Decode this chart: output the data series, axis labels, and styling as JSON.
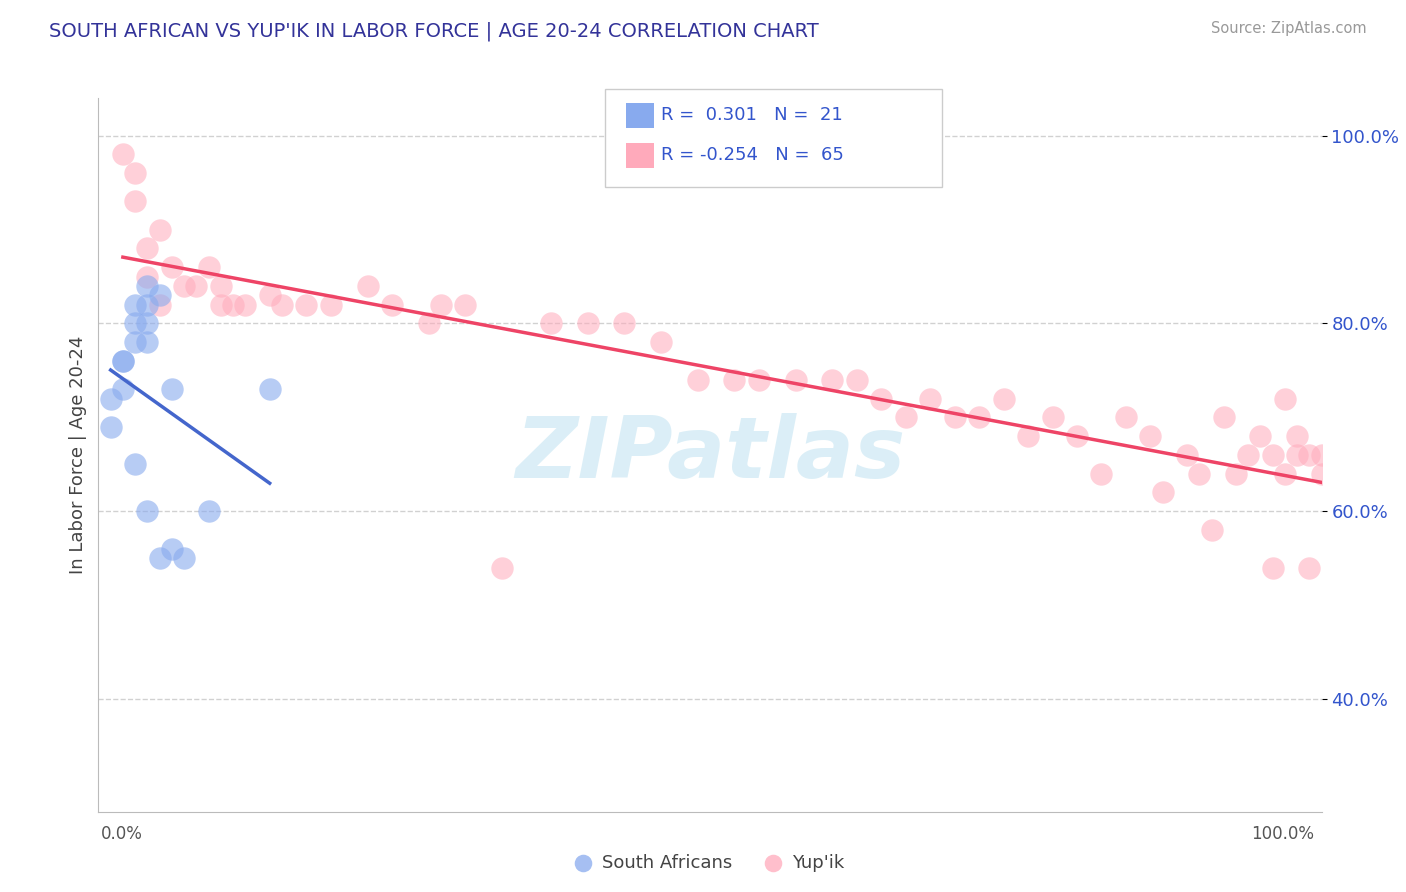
{
  "title": "SOUTH AFRICAN VS YUP'IK IN LABOR FORCE | AGE 20-24 CORRELATION CHART",
  "source": "Source: ZipAtlas.com",
  "ylabel": "In Labor Force | Age 20-24",
  "xlim": [
    0.0,
    1.0
  ],
  "ylim": [
    0.28,
    1.04
  ],
  "yticks": [
    0.4,
    0.6,
    0.8,
    1.0
  ],
  "ytick_labels": [
    "40.0%",
    "60.0%",
    "80.0%",
    "100.0%"
  ],
  "blue_dot_color": "#88aaee",
  "pink_dot_color": "#ffaabb",
  "blue_line_color": "#4466cc",
  "pink_line_color": "#ee4466",
  "legend_text_color": "#3355cc",
  "title_color": "#333399",
  "axis_tick_color": "#3355cc",
  "grid_color": "#cccccc",
  "sa_x": [
    0.01,
    0.01,
    0.02,
    0.02,
    0.02,
    0.03,
    0.03,
    0.03,
    0.03,
    0.04,
    0.04,
    0.04,
    0.04,
    0.04,
    0.05,
    0.05,
    0.06,
    0.06,
    0.07,
    0.09,
    0.14
  ],
  "sa_y": [
    0.72,
    0.69,
    0.76,
    0.76,
    0.73,
    0.82,
    0.8,
    0.78,
    0.65,
    0.84,
    0.82,
    0.8,
    0.78,
    0.6,
    0.83,
    0.55,
    0.73,
    0.56,
    0.55,
    0.6,
    0.73
  ],
  "yp_x": [
    0.02,
    0.03,
    0.03,
    0.04,
    0.04,
    0.05,
    0.05,
    0.06,
    0.07,
    0.08,
    0.09,
    0.1,
    0.1,
    0.11,
    0.12,
    0.14,
    0.15,
    0.17,
    0.19,
    0.22,
    0.24,
    0.27,
    0.28,
    0.3,
    0.33,
    0.37,
    0.4,
    0.43,
    0.46,
    0.49,
    0.52,
    0.54,
    0.57,
    0.6,
    0.62,
    0.64,
    0.66,
    0.68,
    0.7,
    0.72,
    0.74,
    0.76,
    0.78,
    0.8,
    0.82,
    0.84,
    0.86,
    0.87,
    0.89,
    0.9,
    0.91,
    0.92,
    0.93,
    0.94,
    0.95,
    0.96,
    0.96,
    0.97,
    0.97,
    0.98,
    0.98,
    0.99,
    0.99,
    1.0,
    1.0
  ],
  "yp_y": [
    0.98,
    0.93,
    0.96,
    0.88,
    0.85,
    0.9,
    0.82,
    0.86,
    0.84,
    0.84,
    0.86,
    0.84,
    0.82,
    0.82,
    0.82,
    0.83,
    0.82,
    0.82,
    0.82,
    0.84,
    0.82,
    0.8,
    0.82,
    0.82,
    0.54,
    0.8,
    0.8,
    0.8,
    0.78,
    0.74,
    0.74,
    0.74,
    0.74,
    0.74,
    0.74,
    0.72,
    0.7,
    0.72,
    0.7,
    0.7,
    0.72,
    0.68,
    0.7,
    0.68,
    0.64,
    0.7,
    0.68,
    0.62,
    0.66,
    0.64,
    0.58,
    0.7,
    0.64,
    0.66,
    0.68,
    0.66,
    0.54,
    0.72,
    0.64,
    0.66,
    0.68,
    0.54,
    0.66,
    0.64,
    0.66
  ],
  "sa_R": 0.301,
  "sa_N": 21,
  "yp_R": -0.254,
  "yp_N": 65
}
